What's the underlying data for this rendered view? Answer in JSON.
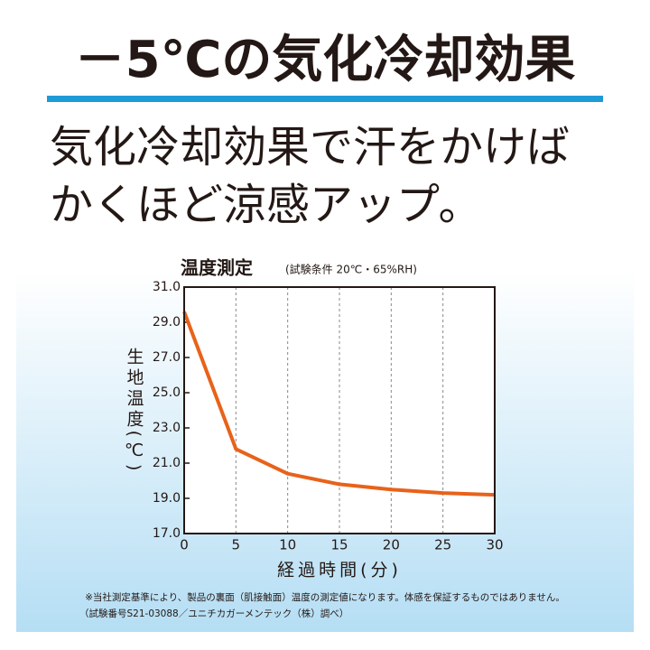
{
  "header": {
    "title": "－5℃の気化冷却効果",
    "subtitle": [
      "気化冷却効果で汗をかけば",
      "かくほど涼感アップ。"
    ]
  },
  "chart_data": {
    "type": "line",
    "title": "温度測定",
    "subtitle": "(試験条件 20℃・65%RH)",
    "x_label": "経過時間(分)",
    "y_label": "生地温度(℃)",
    "x": [
      0,
      5,
      10,
      15,
      20,
      25,
      30
    ],
    "series": [
      {
        "name": "生地温度",
        "color": "#e8621a",
        "values": [
          29.6,
          21.8,
          20.4,
          19.8,
          19.5,
          19.3,
          19.2
        ]
      }
    ],
    "xlim": [
      0,
      30
    ],
    "xticks": [
      0,
      5,
      10,
      15,
      20,
      25,
      30
    ],
    "ylim": [
      17,
      31
    ],
    "yticks": [
      {
        "value": 17,
        "label": "17.0"
      },
      {
        "value": 19,
        "label": "19.0"
      },
      {
        "value": 21,
        "label": "21.0"
      },
      {
        "value": 23,
        "label": "23.0"
      },
      {
        "value": 25,
        "label": "25.0"
      },
      {
        "value": 27,
        "label": "27.0"
      },
      {
        "value": 29,
        "label": "29.0"
      },
      {
        "value": 31,
        "label": "31.0"
      }
    ],
    "grid": "x"
  },
  "footnotes": [
    "※当社測定基準により、製品の裏面（肌接触面）温度の測定値になります。体感を保証するものではありません。",
    "（試験番号S21-03088／ユニチカガーメンテック（株）調べ）"
  ]
}
